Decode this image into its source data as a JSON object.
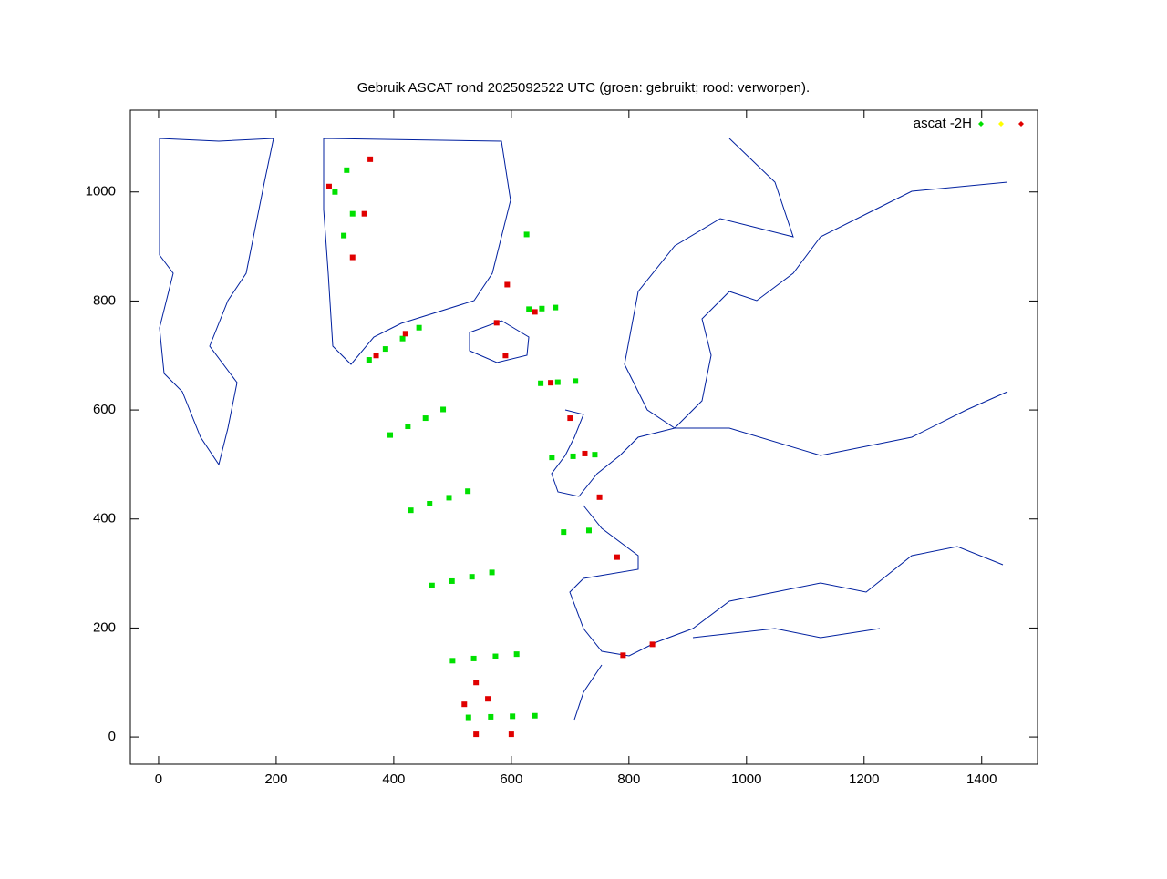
{
  "chart_data": {
    "type": "scatter",
    "title": "Gebruik ASCAT rond 2025092522 UTC (groen: gebruikt; rood: verworpen).",
    "legend_label": "ascat -2H",
    "legend": "upper right",
    "xlim": [
      -48,
      1495
    ],
    "ylim": [
      -50,
      1150
    ],
    "xticks": [
      0,
      200,
      400,
      600,
      800,
      1000,
      1200,
      1400
    ],
    "yticks": [
      0,
      200,
      400,
      600,
      800,
      1000
    ],
    "series": [
      {
        "color": "#00e000",
        "x": [
          358,
          386,
          415,
          443,
          394,
          424,
          454,
          484,
          429,
          461,
          494,
          526,
          465,
          499,
          533,
          567,
          500,
          536,
          573,
          609,
          527,
          565,
          602,
          640,
          626,
          630,
          652,
          675,
          650,
          679,
          709,
          669,
          705,
          742,
          689,
          732,
          300,
          320,
          315,
          330
        ],
        "values": [
          692,
          712,
          731,
          751,
          554,
          570,
          585,
          601,
          416,
          428,
          439,
          451,
          278,
          286,
          294,
          302,
          140,
          144,
          148,
          152,
          36,
          37,
          38,
          39,
          922,
          785,
          786,
          788,
          649,
          651,
          653,
          513,
          515,
          518,
          376,
          379,
          1000,
          1040,
          920,
          960
        ]
      },
      {
        "color": "#ffff00",
        "x": [],
        "values": []
      },
      {
        "color": "#e00000",
        "x": [
          290,
          360,
          350,
          330,
          370,
          420,
          540,
          560,
          520,
          600,
          540,
          593,
          667,
          700,
          640,
          575,
          590,
          790,
          840,
          780,
          750,
          725
        ],
        "values": [
          1010,
          1060,
          960,
          880,
          700,
          740,
          100,
          70,
          60,
          5,
          5,
          830,
          650,
          585,
          780,
          760,
          700,
          150,
          170,
          330,
          440,
          520
        ]
      }
    ]
  }
}
